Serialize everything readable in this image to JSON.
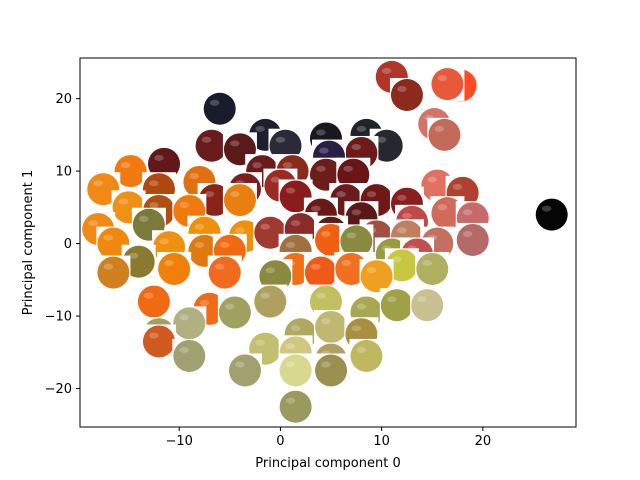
{
  "chart_data": {
    "type": "scatter",
    "xlabel": "Principal component 0",
    "ylabel": "Principal component 1",
    "xlim": [
      -19.8,
      29.2
    ],
    "ylim": [
      -25.3,
      25.6
    ],
    "xticks": [
      -10,
      0,
      10,
      20
    ],
    "xtick_labels": [
      "−10",
      "0",
      "10",
      "20"
    ],
    "yticks": [
      -20,
      -10,
      0,
      10,
      20
    ],
    "ytick_labels": [
      "−20",
      "−10",
      "0",
      "10",
      "20"
    ],
    "grid": false,
    "marker": "fruit image thumbnails (apples and oranges)",
    "points": [
      {
        "x": 11,
        "y": 23,
        "color": "#b0352a"
      },
      {
        "x": 17.8,
        "y": 21.8,
        "color": "#ff4a22"
      },
      {
        "x": 16.5,
        "y": 22,
        "color": "#e8583a"
      },
      {
        "x": 12.5,
        "y": 20.5,
        "color": "#8c2a1c"
      },
      {
        "x": -6,
        "y": 18.6,
        "color": "#191c2a"
      },
      {
        "x": 15.2,
        "y": 16.5,
        "color": "#d2746a"
      },
      {
        "x": 16.2,
        "y": 15,
        "color": "#c46a5a"
      },
      {
        "x": -6.8,
        "y": 13.5,
        "color": "#6a1c1c"
      },
      {
        "x": -1.5,
        "y": 15,
        "color": "#1e1e2e"
      },
      {
        "x": 4.5,
        "y": 14.5,
        "color": "#18181e"
      },
      {
        "x": 8.5,
        "y": 15,
        "color": "#202428"
      },
      {
        "x": 10.5,
        "y": 13.5,
        "color": "#262830"
      },
      {
        "x": 0.5,
        "y": 13.5,
        "color": "#2a2a38"
      },
      {
        "x": -4,
        "y": 13,
        "color": "#5a1a1a"
      },
      {
        "x": 8,
        "y": 12.5,
        "color": "#6e1a1a"
      },
      {
        "x": 4.8,
        "y": 12,
        "color": "#2a2044"
      },
      {
        "x": -11.5,
        "y": 11,
        "color": "#621818"
      },
      {
        "x": -14.8,
        "y": 10,
        "color": "#f07a10"
      },
      {
        "x": -1.8,
        "y": 10,
        "color": "#6a1c1c"
      },
      {
        "x": 1.2,
        "y": 10,
        "color": "#8a2a1a"
      },
      {
        "x": 4.5,
        "y": 9.5,
        "color": "#6c1d1a"
      },
      {
        "x": 7.2,
        "y": 9.5,
        "color": "#6a1418"
      },
      {
        "x": -12,
        "y": 7.5,
        "color": "#b04810"
      },
      {
        "x": -8,
        "y": 8.5,
        "color": "#e07010"
      },
      {
        "x": -3.5,
        "y": 7.5,
        "color": "#7a1e1e"
      },
      {
        "x": 0,
        "y": 8,
        "color": "#9a2a22"
      },
      {
        "x": 15.5,
        "y": 8,
        "color": "#e07060"
      },
      {
        "x": 18,
        "y": 7,
        "color": "#b04030"
      },
      {
        "x": -17.5,
        "y": 7.5,
        "color": "#f08a14"
      },
      {
        "x": -6.5,
        "y": 6,
        "color": "#8a2418"
      },
      {
        "x": -4,
        "y": 6,
        "color": "#e88010"
      },
      {
        "x": 1.5,
        "y": 6.5,
        "color": "#8a1c1c"
      },
      {
        "x": 6.5,
        "y": 6,
        "color": "#6a1c1c"
      },
      {
        "x": 9.5,
        "y": 6,
        "color": "#701818"
      },
      {
        "x": 12.5,
        "y": 5.5,
        "color": "#8a1e1e"
      },
      {
        "x": 26.8,
        "y": 4,
        "color": "#050505"
      },
      {
        "x": -15,
        "y": 5,
        "color": "#f09014"
      },
      {
        "x": -12,
        "y": 4.5,
        "color": "#b05010"
      },
      {
        "x": -9,
        "y": 4.5,
        "color": "#f07a10"
      },
      {
        "x": 4,
        "y": 4,
        "color": "#6a1818"
      },
      {
        "x": 8,
        "y": 3.5,
        "color": "#5a1818"
      },
      {
        "x": 13,
        "y": 3,
        "color": "#c04848"
      },
      {
        "x": 16.5,
        "y": 4.2,
        "color": "#d06a5a"
      },
      {
        "x": 19,
        "y": 3.5,
        "color": "#c86a6a"
      },
      {
        "x": -18,
        "y": 2,
        "color": "#f08a14"
      },
      {
        "x": -13,
        "y": 2.6,
        "color": "#7a7a3a"
      },
      {
        "x": -7.5,
        "y": 1.5,
        "color": "#f0900a"
      },
      {
        "x": -3.5,
        "y": 1,
        "color": "#f0900a"
      },
      {
        "x": -1,
        "y": 1.5,
        "color": "#a03a30"
      },
      {
        "x": 2,
        "y": 2,
        "color": "#8a2a2a"
      },
      {
        "x": 5,
        "y": 1.5,
        "color": "#5a1a1a"
      },
      {
        "x": 9.5,
        "y": 1,
        "color": "#a05040"
      },
      {
        "x": 12.5,
        "y": 1,
        "color": "#c08060"
      },
      {
        "x": 15.5,
        "y": 0,
        "color": "#c47060"
      },
      {
        "x": 19,
        "y": 0.5,
        "color": "#b56a6a"
      },
      {
        "x": -16.5,
        "y": 0,
        "color": "#f0880c"
      },
      {
        "x": 5,
        "y": 0.5,
        "color": "#f06010"
      },
      {
        "x": 7.5,
        "y": 0.3,
        "color": "#8a8a40"
      },
      {
        "x": -11,
        "y": -0.5,
        "color": "#f09010"
      },
      {
        "x": -7.5,
        "y": -1,
        "color": "#e07a10"
      },
      {
        "x": -5,
        "y": -1,
        "color": "#f06a10"
      },
      {
        "x": 1.5,
        "y": -1,
        "color": "#a07040"
      },
      {
        "x": 11,
        "y": -1.5,
        "color": "#9a9a40"
      },
      {
        "x": 13.5,
        "y": -1.5,
        "color": "#c05050"
      },
      {
        "x": -14,
        "y": -2.5,
        "color": "#8a7a30"
      },
      {
        "x": -10.5,
        "y": -3.5,
        "color": "#f0800a"
      },
      {
        "x": -5.5,
        "y": -4,
        "color": "#f06a20"
      },
      {
        "x": 1.5,
        "y": -3.5,
        "color": "#f07018"
      },
      {
        "x": 4,
        "y": -4,
        "color": "#f05a18"
      },
      {
        "x": 7,
        "y": -3.5,
        "color": "#f07020"
      },
      {
        "x": 12,
        "y": -3,
        "color": "#c8c840"
      },
      {
        "x": 15,
        "y": -3.5,
        "color": "#b0b060"
      },
      {
        "x": -16.5,
        "y": -4,
        "color": "#d08020"
      },
      {
        "x": -0.5,
        "y": -4.5,
        "color": "#8a8a40"
      },
      {
        "x": 9.5,
        "y": -4.5,
        "color": "#f0a020"
      },
      {
        "x": -12.5,
        "y": -8,
        "color": "#f06a14"
      },
      {
        "x": -7,
        "y": -9,
        "color": "#f06a18"
      },
      {
        "x": -4.5,
        "y": -9.5,
        "color": "#a0a060"
      },
      {
        "x": -1,
        "y": -8,
        "color": "#b0a060"
      },
      {
        "x": 4.5,
        "y": -8,
        "color": "#c0c060"
      },
      {
        "x": 8.5,
        "y": -9.5,
        "color": "#a8a850"
      },
      {
        "x": 11.5,
        "y": -8.5,
        "color": "#a0a048"
      },
      {
        "x": 14.5,
        "y": -8.5,
        "color": "#c8c090"
      },
      {
        "x": -12,
        "y": -12.5,
        "color": "#a0a060"
      },
      {
        "x": -9,
        "y": -11,
        "color": "#b0b080"
      },
      {
        "x": -12,
        "y": -13.5,
        "color": "#d05a20"
      },
      {
        "x": 2,
        "y": -12.5,
        "color": "#b0a860"
      },
      {
        "x": 5,
        "y": -11.5,
        "color": "#c0b870"
      },
      {
        "x": 8,
        "y": -12.5,
        "color": "#a89040"
      },
      {
        "x": -9,
        "y": -15.5,
        "color": "#a0a070"
      },
      {
        "x": -1.5,
        "y": -14.5,
        "color": "#c0c070"
      },
      {
        "x": 1.5,
        "y": -15,
        "color": "#d0c880"
      },
      {
        "x": 5,
        "y": -16,
        "color": "#b0a060"
      },
      {
        "x": 8.5,
        "y": -15.5,
        "color": "#c0b860"
      },
      {
        "x": -3.5,
        "y": -17.5,
        "color": "#a0a070"
      },
      {
        "x": 1.5,
        "y": -17.5,
        "color": "#d8d890"
      },
      {
        "x": 5,
        "y": -17.5,
        "color": "#9a9050"
      },
      {
        "x": 1.5,
        "y": -22.5,
        "color": "#9a9a60"
      }
    ]
  }
}
